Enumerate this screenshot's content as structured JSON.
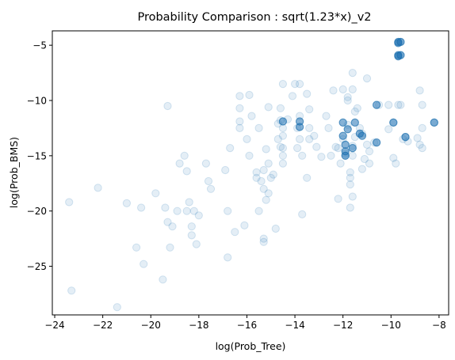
{
  "chart_data": {
    "type": "scatter",
    "title": "Probability Comparison : sqrt(1.23*x)_v2",
    "xlabel": "log(Prob_Tree)",
    "ylabel": "log(Prob_BMS)",
    "xlim": [
      -24.1,
      -7.6
    ],
    "ylim": [
      -29.4,
      -3.7
    ],
    "xticks": [
      -24,
      -22,
      -20,
      -18,
      -16,
      -14,
      -12,
      -10,
      -8
    ],
    "yticks": [
      -25,
      -20,
      -15,
      -10,
      -5
    ],
    "grid": false,
    "marker_color": "#1f77b4",
    "marker_alpha": 0.12,
    "points": [
      [
        -23.4,
        -19.2
      ],
      [
        -23.3,
        -27.2
      ],
      [
        -22.2,
        -17.9
      ],
      [
        -21.4,
        -28.7
      ],
      [
        -21.0,
        -19.3
      ],
      [
        -20.6,
        -23.3
      ],
      [
        -20.4,
        -19.7
      ],
      [
        -20.3,
        -24.8
      ],
      [
        -19.8,
        -18.4
      ],
      [
        -19.5,
        -26.2
      ],
      [
        -19.4,
        -19.7
      ],
      [
        -19.3,
        -10.5
      ],
      [
        -19.3,
        -21.0
      ],
      [
        -19.2,
        -23.3
      ],
      [
        -19.1,
        -21.4
      ],
      [
        -18.9,
        -20.0
      ],
      [
        -18.8,
        -15.7
      ],
      [
        -18.6,
        -15.0
      ],
      [
        -18.5,
        -16.4
      ],
      [
        -18.5,
        -20.0
      ],
      [
        -18.4,
        -19.2
      ],
      [
        -18.3,
        -21.4
      ],
      [
        -18.3,
        -22.2
      ],
      [
        -18.2,
        -20.0
      ],
      [
        -18.1,
        -23.0
      ],
      [
        -18.0,
        -20.4
      ],
      [
        -17.7,
        -15.7
      ],
      [
        -17.6,
        -17.3
      ],
      [
        -17.5,
        -18.0
      ],
      [
        -16.9,
        -16.3
      ],
      [
        -16.8,
        -20.0
      ],
      [
        -16.8,
        -24.2
      ],
      [
        -16.7,
        -14.3
      ],
      [
        -16.5,
        -21.9
      ],
      [
        -16.3,
        -9.6
      ],
      [
        -16.3,
        -10.7
      ],
      [
        -16.3,
        -11.9
      ],
      [
        -16.3,
        -12.5
      ],
      [
        -16.1,
        -21.3
      ],
      [
        -16.0,
        -13.5
      ],
      [
        -15.9,
        -9.5
      ],
      [
        -15.9,
        -15.0
      ],
      [
        -15.8,
        -11.4
      ],
      [
        -15.6,
        -16.5
      ],
      [
        -15.6,
        -17.0
      ],
      [
        -15.5,
        -12.5
      ],
      [
        -15.5,
        -20.0
      ],
      [
        -15.4,
        -17.3
      ],
      [
        -15.3,
        -16.3
      ],
      [
        -15.3,
        -18.0
      ],
      [
        -15.3,
        -22.5
      ],
      [
        -15.3,
        -22.8
      ],
      [
        -15.2,
        -14.4
      ],
      [
        -15.2,
        -19.0
      ],
      [
        -15.1,
        -10.6
      ],
      [
        -15.1,
        -15.7
      ],
      [
        -15.1,
        -18.4
      ],
      [
        -15.0,
        -17.0
      ],
      [
        -14.9,
        -16.7
      ],
      [
        -14.8,
        -21.6
      ],
      [
        -14.7,
        -12.1
      ],
      [
        -14.7,
        -13.5
      ],
      [
        -14.6,
        -10.7
      ],
      [
        -14.6,
        -11.8
      ],
      [
        -14.6,
        -14.2
      ],
      [
        -14.5,
        -8.5
      ],
      [
        -14.5,
        -12.5
      ],
      [
        -14.5,
        -13.2
      ],
      [
        -14.5,
        -14.3
      ],
      [
        -14.5,
        -15.0
      ],
      [
        -14.5,
        -15.7
      ],
      [
        -14.3,
        -11.7
      ],
      [
        -14.1,
        -9.6
      ],
      [
        -14.0,
        -8.5
      ],
      [
        -13.9,
        -12.5
      ],
      [
        -13.9,
        -14.3
      ],
      [
        -13.8,
        -8.5
      ],
      [
        -13.8,
        -11.4
      ],
      [
        -13.8,
        -13.5
      ],
      [
        -13.7,
        -15.0
      ],
      [
        -13.7,
        -20.3
      ],
      [
        -13.5,
        -9.4
      ],
      [
        -13.5,
        -17.0
      ],
      [
        -13.4,
        -10.8
      ],
      [
        -13.4,
        -12.5
      ],
      [
        -13.4,
        -13.5
      ],
      [
        -13.2,
        -13.2
      ],
      [
        -13.1,
        -14.2
      ],
      [
        -12.9,
        -15.1
      ],
      [
        -12.7,
        -11.4
      ],
      [
        -12.6,
        -12.5
      ],
      [
        -12.5,
        -15.0
      ],
      [
        -12.4,
        -9.1
      ],
      [
        -12.3,
        -14.2
      ],
      [
        -12.2,
        -14.3
      ],
      [
        -12.2,
        -18.9
      ],
      [
        -12.1,
        -15.7
      ],
      [
        -12.0,
        -9.0
      ],
      [
        -12.0,
        -13.5
      ],
      [
        -11.9,
        -14.8
      ],
      [
        -11.9,
        -15.0
      ],
      [
        -11.8,
        -9.7
      ],
      [
        -11.8,
        -10.0
      ],
      [
        -11.8,
        -12.2
      ],
      [
        -11.7,
        -16.5
      ],
      [
        -11.7,
        -17.0
      ],
      [
        -11.7,
        -17.6
      ],
      [
        -11.7,
        -19.7
      ],
      [
        -11.6,
        -7.5
      ],
      [
        -11.6,
        -9.0
      ],
      [
        -11.6,
        -14.1
      ],
      [
        -11.6,
        -15.0
      ],
      [
        -11.6,
        -18.7
      ],
      [
        -11.5,
        -11.0
      ],
      [
        -11.5,
        -13.3
      ],
      [
        -11.4,
        -10.7
      ],
      [
        -11.3,
        -12.5
      ],
      [
        -11.2,
        -13.0
      ],
      [
        -11.2,
        -16.2
      ],
      [
        -11.1,
        -15.3
      ],
      [
        -11.0,
        -8.0
      ],
      [
        -11.0,
        -14.0
      ],
      [
        -10.9,
        -14.6
      ],
      [
        -10.9,
        -15.7
      ],
      [
        -10.7,
        -13.8
      ],
      [
        -10.5,
        -10.4
      ],
      [
        -10.1,
        -10.4
      ],
      [
        -10.1,
        -12.6
      ],
      [
        -9.9,
        -12.0
      ],
      [
        -9.9,
        -15.2
      ],
      [
        -9.8,
        -15.7
      ],
      [
        -9.7,
        -10.4
      ],
      [
        -9.6,
        -4.7
      ],
      [
        -9.6,
        -5.9
      ],
      [
        -9.6,
        -10.4
      ],
      [
        -9.5,
        -13.5
      ],
      [
        -9.4,
        -13.3
      ],
      [
        -9.3,
        -13.7
      ],
      [
        -8.9,
        -13.4
      ],
      [
        -8.8,
        -14.0
      ],
      [
        -8.8,
        -9.1
      ],
      [
        -8.7,
        -10.4
      ],
      [
        -8.7,
        -12.5
      ],
      [
        -8.7,
        -14.3
      ],
      [
        -8.2,
        -12.0
      ]
    ],
    "dense_points": [
      [
        -14.5,
        -11.9
      ],
      [
        -13.8,
        -11.9
      ],
      [
        -13.8,
        -12.4
      ],
      [
        -12.0,
        -12.0
      ],
      [
        -12.0,
        -13.2
      ],
      [
        -11.9,
        -14.0
      ],
      [
        -11.9,
        -14.6
      ],
      [
        -11.9,
        -15.0
      ],
      [
        -11.8,
        -12.6
      ],
      [
        -11.6,
        -14.3
      ],
      [
        -11.5,
        -12.0
      ],
      [
        -11.3,
        -13.0
      ],
      [
        -11.2,
        -13.2
      ],
      [
        -10.6,
        -10.4
      ],
      [
        -10.6,
        -13.8
      ],
      [
        -9.9,
        -12.0
      ],
      [
        -9.7,
        -4.7
      ],
      [
        -9.7,
        -4.8
      ],
      [
        -9.7,
        -5.9
      ],
      [
        -9.7,
        -6.0
      ],
      [
        -9.6,
        -4.7
      ],
      [
        -9.6,
        -5.9
      ],
      [
        -9.4,
        -13.3
      ],
      [
        -8.2,
        -12.0
      ]
    ]
  }
}
